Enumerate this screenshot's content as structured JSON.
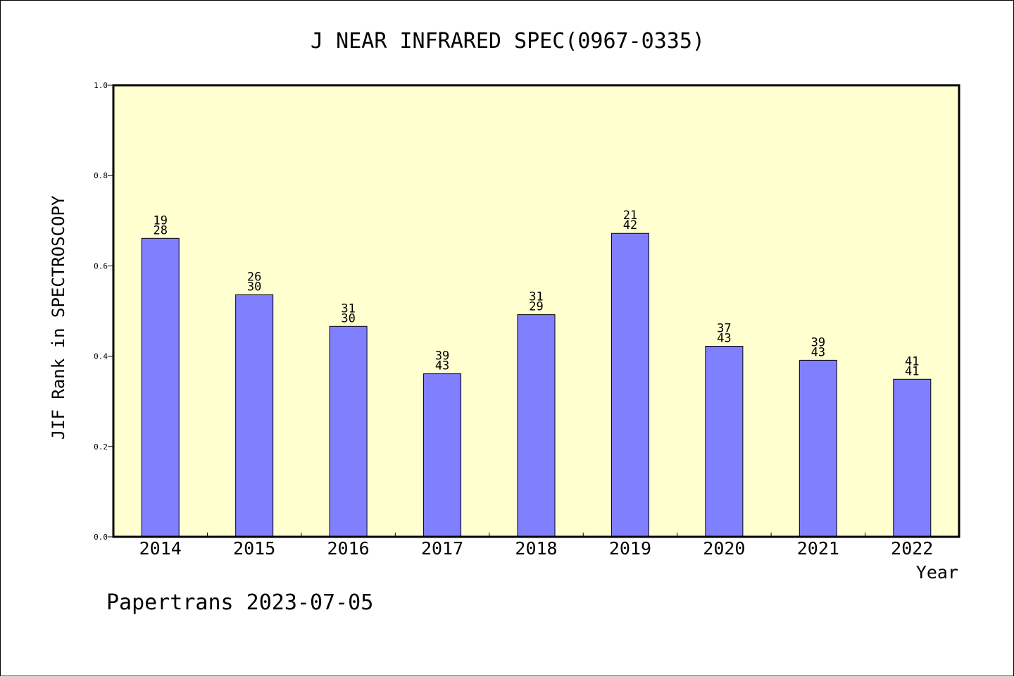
{
  "chart_data": {
    "type": "bar",
    "title": "J NEAR INFRARED SPEC(0967-0335)",
    "xlabel": "Year",
    "ylabel": "JIF Rank in SPECTROSCOPY",
    "categories": [
      "2014",
      "2015",
      "2016",
      "2017",
      "2018",
      "2019",
      "2020",
      "2021",
      "2022"
    ],
    "values": [
      0.661,
      0.536,
      0.466,
      0.361,
      0.492,
      0.672,
      0.422,
      0.391,
      0.349
    ],
    "labels_top": [
      "19",
      "26",
      "31",
      "39",
      "31",
      "21",
      "37",
      "39",
      "41"
    ],
    "labels_bottom": [
      "28",
      "30",
      "30",
      "43",
      "29",
      "42",
      "43",
      "43",
      "41"
    ],
    "ylim": [
      0,
      1.0
    ],
    "yticks": [
      "0.0",
      "0.2",
      "0.4",
      "0.6",
      "0.8",
      "1.0"
    ],
    "grid": false,
    "colors": {
      "plot_background": "#ffffd0",
      "bar_fill": "#8080ff",
      "bar_stroke": "#000000"
    }
  },
  "footer": "Papertrans 2023-07-05"
}
